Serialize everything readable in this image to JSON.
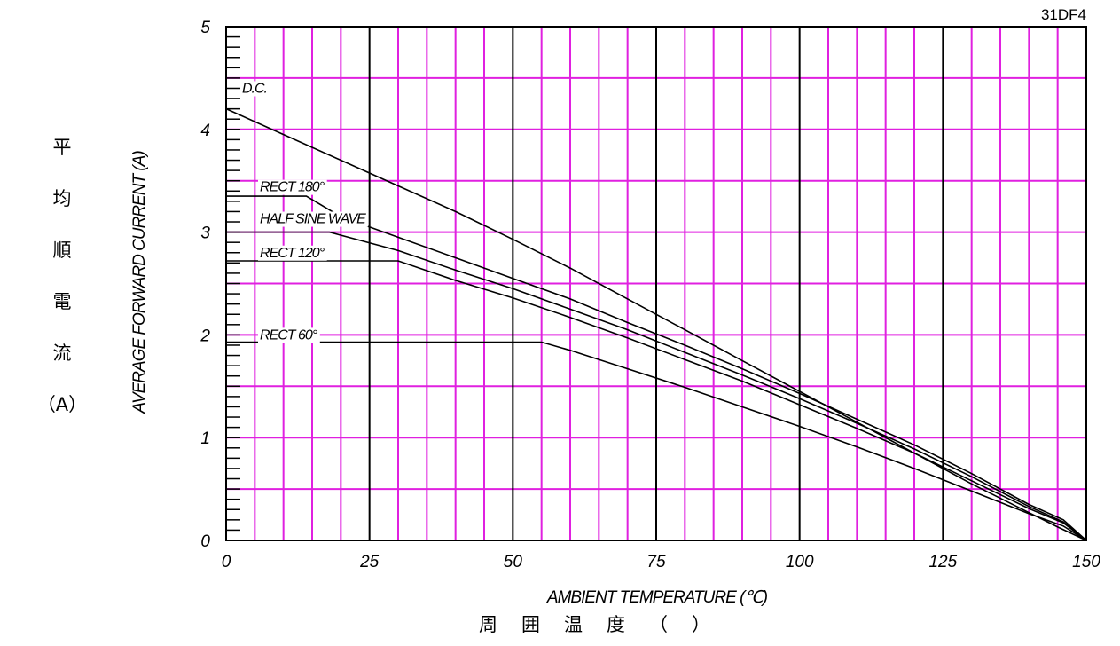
{
  "chart_data": {
    "type": "line",
    "model_label": "31DF4",
    "xlabel": "AMBIENT TEMPERATURE (℃)",
    "xlabel_ja": [
      "周",
      "囲",
      "温",
      "度",
      "（",
      "）"
    ],
    "ylabel": "AVERAGE FORWARD CURRENT (A)",
    "ylabel_ja": [
      "平",
      "均",
      "順",
      "電",
      "流",
      "（A）"
    ],
    "xlim": [
      0,
      150
    ],
    "ylim": [
      0,
      5
    ],
    "x_ticks": [
      0,
      25,
      50,
      75,
      100,
      125,
      150
    ],
    "y_ticks": [
      0,
      1,
      2,
      3,
      4,
      5
    ],
    "grid": true,
    "colors": {
      "minor_grid": "#e020e0",
      "major_grid": "#000000",
      "series": "#000000"
    },
    "series": [
      {
        "name": "D.C.",
        "points": [
          [
            0,
            4.2
          ],
          [
            10,
            3.95
          ],
          [
            20,
            3.7
          ],
          [
            30,
            3.45
          ],
          [
            40,
            3.2
          ],
          [
            50,
            2.93
          ],
          [
            60,
            2.65
          ],
          [
            70,
            2.35
          ],
          [
            80,
            2.05
          ],
          [
            90,
            1.75
          ],
          [
            100,
            1.45
          ],
          [
            110,
            1.15
          ],
          [
            120,
            0.85
          ],
          [
            130,
            0.55
          ],
          [
            140,
            0.27
          ],
          [
            145,
            0.13
          ],
          [
            150,
            0
          ]
        ]
      },
      {
        "name": "RECT 180°",
        "points": [
          [
            0,
            3.35
          ],
          [
            14,
            3.35
          ],
          [
            20,
            3.15
          ],
          [
            30,
            2.95
          ],
          [
            40,
            2.75
          ],
          [
            50,
            2.55
          ],
          [
            60,
            2.35
          ],
          [
            70,
            2.12
          ],
          [
            80,
            1.9
          ],
          [
            90,
            1.67
          ],
          [
            100,
            1.43
          ],
          [
            110,
            1.18
          ],
          [
            120,
            0.93
          ],
          [
            130,
            0.65
          ],
          [
            140,
            0.35
          ],
          [
            146,
            0.2
          ],
          [
            150,
            0
          ]
        ]
      },
      {
        "name": "HALF SINE WAVE",
        "points": [
          [
            0,
            3.0
          ],
          [
            18,
            3.0
          ],
          [
            30,
            2.82
          ],
          [
            40,
            2.63
          ],
          [
            50,
            2.45
          ],
          [
            60,
            2.25
          ],
          [
            70,
            2.05
          ],
          [
            80,
            1.83
          ],
          [
            90,
            1.61
          ],
          [
            100,
            1.38
          ],
          [
            110,
            1.14
          ],
          [
            120,
            0.89
          ],
          [
            130,
            0.62
          ],
          [
            140,
            0.33
          ],
          [
            146,
            0.18
          ],
          [
            150,
            0
          ]
        ]
      },
      {
        "name": "RECT 120°",
        "points": [
          [
            0,
            2.72
          ],
          [
            30,
            2.72
          ],
          [
            40,
            2.53
          ],
          [
            50,
            2.36
          ],
          [
            60,
            2.17
          ],
          [
            70,
            1.97
          ],
          [
            80,
            1.76
          ],
          [
            90,
            1.55
          ],
          [
            100,
            1.32
          ],
          [
            110,
            1.09
          ],
          [
            120,
            0.85
          ],
          [
            130,
            0.58
          ],
          [
            140,
            0.31
          ],
          [
            146,
            0.17
          ],
          [
            150,
            0
          ]
        ]
      },
      {
        "name": "RECT 60°",
        "points": [
          [
            0,
            1.93
          ],
          [
            55,
            1.93
          ],
          [
            60,
            1.85
          ],
          [
            70,
            1.67
          ],
          [
            80,
            1.49
          ],
          [
            90,
            1.3
          ],
          [
            100,
            1.11
          ],
          [
            110,
            0.91
          ],
          [
            120,
            0.7
          ],
          [
            130,
            0.48
          ],
          [
            140,
            0.26
          ],
          [
            146,
            0.14
          ],
          [
            150,
            0
          ]
        ]
      }
    ]
  }
}
